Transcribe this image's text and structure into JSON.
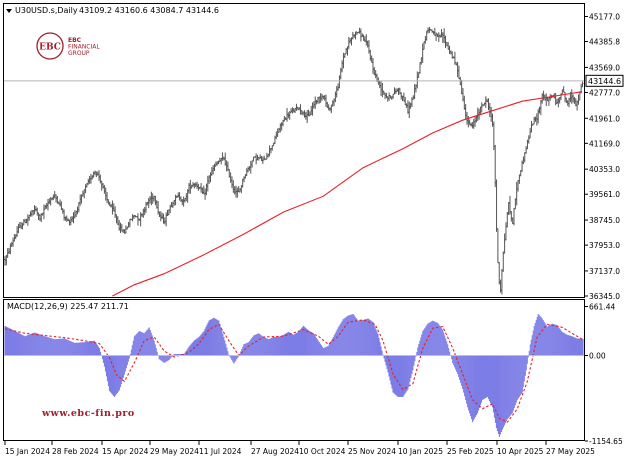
{
  "header": {
    "symbol": "U30USD.s,Daily",
    "ohlc": "43109.2 43160.6 43084.7 43144.6",
    "arrow_icon": "triangle-down-icon"
  },
  "logo": {
    "name_line1": "EBC",
    "name_line2": "FINANCIAL",
    "name_line3": "GROUP",
    "monogram": "EBC"
  },
  "watermark_url": "www.ebc-fin.pro",
  "macd": {
    "label": "MACD(12,26,9) 225.47 211.71",
    "tick_top": "661.44",
    "tick_zero": "0.00",
    "tick_bottom": "-1154.65"
  },
  "current_price_label": "43144.6",
  "chart_data": [
    {
      "type": "bar",
      "subtype": "ohlc",
      "title": "U30USD.s,Daily",
      "y_ticks": [
        "45177.0",
        "44385.8",
        "43569.0",
        "42777.0",
        "41961.0",
        "41169.0",
        "40353.0",
        "39561.0",
        "38745.0",
        "37953.0",
        "37137.0",
        "36345.0"
      ],
      "ylim": [
        36345.0,
        45177.0
      ],
      "x_ticks": [
        "15 Jan 2024",
        "28 Feb 2024",
        "15 Apr 2024",
        "29 May 2024",
        "11 Jul 2024",
        "27 Aug 2024",
        "10 Oct 2024",
        "25 Nov 2024",
        "10 Jan 2025",
        "25 Feb 2025",
        "10 Apr 2025",
        "27 May 2025"
      ],
      "last_close": 43144.6,
      "price_path": [
        [
          0,
          37500
        ],
        [
          3,
          37700
        ],
        [
          8,
          38100
        ],
        [
          14,
          38500
        ],
        [
          20,
          38700
        ],
        [
          25,
          38900
        ],
        [
          30,
          39100
        ],
        [
          35,
          38800
        ],
        [
          40,
          39100
        ],
        [
          45,
          39400
        ],
        [
          50,
          39500
        ],
        [
          55,
          39250
        ],
        [
          60,
          38800
        ],
        [
          64,
          38700
        ],
        [
          70,
          38900
        ],
        [
          75,
          39300
        ],
        [
          80,
          39700
        ],
        [
          85,
          40000
        ],
        [
          90,
          40300
        ],
        [
          95,
          40100
        ],
        [
          100,
          39600
        ],
        [
          105,
          39200
        ],
        [
          110,
          39000
        ],
        [
          115,
          38500
        ],
        [
          120,
          38350
        ],
        [
          125,
          38700
        ],
        [
          130,
          38900
        ],
        [
          135,
          38800
        ],
        [
          140,
          39100
        ],
        [
          145,
          39400
        ],
        [
          150,
          39500
        ],
        [
          155,
          38900
        ],
        [
          160,
          38700
        ],
        [
          165,
          39100
        ],
        [
          170,
          39400
        ],
        [
          175,
          39500
        ],
        [
          180,
          39300
        ],
        [
          185,
          39800
        ],
        [
          190,
          39900
        ],
        [
          195,
          39800
        ],
        [
          200,
          39500
        ],
        [
          205,
          40100
        ],
        [
          210,
          40400
        ],
        [
          215,
          40600
        ],
        [
          220,
          40700
        ],
        [
          225,
          40200
        ],
        [
          230,
          39700
        ],
        [
          235,
          39600
        ],
        [
          240,
          40100
        ],
        [
          245,
          40400
        ],
        [
          250,
          40700
        ],
        [
          255,
          40700
        ],
        [
          260,
          40600
        ],
        [
          265,
          40900
        ],
        [
          270,
          41200
        ],
        [
          275,
          41600
        ],
        [
          280,
          41900
        ],
        [
          285,
          42100
        ],
        [
          290,
          42200
        ],
        [
          295,
          42300
        ],
        [
          300,
          42100
        ],
        [
          305,
          42000
        ],
        [
          310,
          42400
        ],
        [
          315,
          42600
        ],
        [
          320,
          42700
        ],
        [
          325,
          42200
        ],
        [
          330,
          42500
        ],
        [
          335,
          43000
        ],
        [
          340,
          43900
        ],
        [
          345,
          44300
        ],
        [
          350,
          44600
        ],
        [
          355,
          44700
        ],
        [
          360,
          44500
        ],
        [
          365,
          44200
        ],
        [
          370,
          43500
        ],
        [
          375,
          43100
        ],
        [
          380,
          42800
        ],
        [
          385,
          42600
        ],
        [
          390,
          42700
        ],
        [
          395,
          42900
        ],
        [
          400,
          42600
        ],
        [
          405,
          42200
        ],
        [
          410,
          42600
        ],
        [
          415,
          43300
        ],
        [
          420,
          44200
        ],
        [
          425,
          44800
        ],
        [
          430,
          44700
        ],
        [
          435,
          44500
        ],
        [
          440,
          44600
        ],
        [
          445,
          44200
        ],
        [
          450,
          43900
        ],
        [
          455,
          43500
        ],
        [
          460,
          42600
        ],
        [
          465,
          41800
        ],
        [
          470,
          41700
        ],
        [
          475,
          42100
        ],
        [
          480,
          42400
        ],
        [
          485,
          42500
        ],
        [
          490,
          41800
        ],
        [
          492,
          40800
        ],
        [
          494,
          38500
        ],
        [
          496,
          37000
        ],
        [
          498,
          36500
        ],
        [
          500,
          37400
        ],
        [
          503,
          38400
        ],
        [
          506,
          39300
        ],
        [
          510,
          38600
        ],
        [
          514,
          39700
        ],
        [
          518,
          40300
        ],
        [
          522,
          40800
        ],
        [
          526,
          41300
        ],
        [
          530,
          41800
        ],
        [
          535,
          42000
        ],
        [
          540,
          42700
        ],
        [
          545,
          42500
        ],
        [
          550,
          42700
        ],
        [
          555,
          42400
        ],
        [
          560,
          42900
        ],
        [
          565,
          42400
        ],
        [
          570,
          42700
        ],
        [
          574,
          42400
        ],
        [
          577,
          42600
        ],
        [
          579,
          42900
        ],
        [
          581,
          43144.6
        ]
      ],
      "ma_path": [
        [
          108,
          36345
        ],
        [
          130,
          36700
        ],
        [
          160,
          37050
        ],
        [
          200,
          37650
        ],
        [
          240,
          38300
        ],
        [
          280,
          39000
        ],
        [
          320,
          39500
        ],
        [
          360,
          40400
        ],
        [
          400,
          41000
        ],
        [
          430,
          41500
        ],
        [
          460,
          41900
        ],
        [
          490,
          42200
        ],
        [
          520,
          42500
        ],
        [
          550,
          42650
        ],
        [
          580,
          42800
        ]
      ]
    },
    {
      "type": "bar",
      "subtype": "histogram-with-signal",
      "title": "MACD(12,26,9) 225.47 211.71",
      "ylim": [
        -1154.65,
        661.44
      ],
      "y_ticks": [
        "661.44",
        "0.00",
        "-1154.65"
      ],
      "macd_last": 225.47,
      "signal_last": 211.71,
      "hist_path": [
        [
          0,
          400
        ],
        [
          10,
          330
        ],
        [
          20,
          260
        ],
        [
          30,
          310
        ],
        [
          40,
          260
        ],
        [
          50,
          220
        ],
        [
          60,
          230
        ],
        [
          70,
          170
        ],
        [
          80,
          180
        ],
        [
          90,
          200
        ],
        [
          95,
          100
        ],
        [
          100,
          -150
        ],
        [
          105,
          -480
        ],
        [
          110,
          -560
        ],
        [
          115,
          -470
        ],
        [
          120,
          -260
        ],
        [
          125,
          -40
        ],
        [
          130,
          260
        ],
        [
          135,
          330
        ],
        [
          140,
          300
        ],
        [
          145,
          380
        ],
        [
          150,
          200
        ],
        [
          155,
          -50
        ],
        [
          160,
          -100
        ],
        [
          165,
          -60
        ],
        [
          170,
          20
        ],
        [
          180,
          20
        ],
        [
          185,
          120
        ],
        [
          190,
          200
        ],
        [
          195,
          250
        ],
        [
          200,
          330
        ],
        [
          205,
          470
        ],
        [
          210,
          510
        ],
        [
          215,
          470
        ],
        [
          220,
          250
        ],
        [
          225,
          10
        ],
        [
          230,
          -110
        ],
        [
          235,
          -10
        ],
        [
          240,
          150
        ],
        [
          245,
          180
        ],
        [
          250,
          270
        ],
        [
          255,
          300
        ],
        [
          260,
          250
        ],
        [
          265,
          220
        ],
        [
          270,
          250
        ],
        [
          275,
          250
        ],
        [
          280,
          280
        ],
        [
          285,
          320
        ],
        [
          290,
          280
        ],
        [
          295,
          320
        ],
        [
          300,
          400
        ],
        [
          305,
          340
        ],
        [
          310,
          300
        ],
        [
          315,
          200
        ],
        [
          320,
          100
        ],
        [
          325,
          130
        ],
        [
          330,
          250
        ],
        [
          335,
          380
        ],
        [
          340,
          490
        ],
        [
          345,
          540
        ],
        [
          350,
          560
        ],
        [
          355,
          470
        ],
        [
          360,
          480
        ],
        [
          365,
          500
        ],
        [
          370,
          450
        ],
        [
          375,
          290
        ],
        [
          380,
          10
        ],
        [
          385,
          -230
        ],
        [
          390,
          -500
        ],
        [
          395,
          -560
        ],
        [
          400,
          -560
        ],
        [
          405,
          -460
        ],
        [
          410,
          -200
        ],
        [
          415,
          110
        ],
        [
          420,
          330
        ],
        [
          425,
          430
        ],
        [
          430,
          470
        ],
        [
          435,
          440
        ],
        [
          440,
          350
        ],
        [
          445,
          150
        ],
        [
          450,
          -100
        ],
        [
          455,
          -250
        ],
        [
          460,
          -450
        ],
        [
          465,
          -700
        ],
        [
          470,
          -900
        ],
        [
          475,
          -780
        ],
        [
          480,
          -600
        ],
        [
          485,
          -560
        ],
        [
          490,
          -700
        ],
        [
          494,
          -980
        ],
        [
          497,
          -1100
        ],
        [
          500,
          -1000
        ],
        [
          505,
          -860
        ],
        [
          510,
          -780
        ],
        [
          515,
          -600
        ],
        [
          520,
          -500
        ],
        [
          524,
          -200
        ],
        [
          528,
          150
        ],
        [
          532,
          400
        ],
        [
          536,
          560
        ],
        [
          540,
          500
        ],
        [
          545,
          390
        ],
        [
          550,
          430
        ],
        [
          555,
          410
        ],
        [
          560,
          320
        ],
        [
          565,
          280
        ],
        [
          570,
          260
        ],
        [
          575,
          230
        ],
        [
          581,
          225
        ]
      ],
      "signal_path": [
        [
          0,
          360
        ],
        [
          20,
          300
        ],
        [
          40,
          270
        ],
        [
          60,
          240
        ],
        [
          80,
          200
        ],
        [
          95,
          160
        ],
        [
          105,
          -30
        ],
        [
          112,
          -260
        ],
        [
          120,
          -350
        ],
        [
          130,
          -100
        ],
        [
          140,
          200
        ],
        [
          150,
          250
        ],
        [
          160,
          60
        ],
        [
          170,
          -20
        ],
        [
          185,
          40
        ],
        [
          195,
          160
        ],
        [
          205,
          350
        ],
        [
          215,
          420
        ],
        [
          225,
          200
        ],
        [
          235,
          0
        ],
        [
          245,
          130
        ],
        [
          260,
          250
        ],
        [
          280,
          260
        ],
        [
          300,
          350
        ],
        [
          315,
          260
        ],
        [
          325,
          150
        ],
        [
          335,
          260
        ],
        [
          345,
          450
        ],
        [
          360,
          480
        ],
        [
          372,
          420
        ],
        [
          380,
          200
        ],
        [
          390,
          -250
        ],
        [
          400,
          -460
        ],
        [
          410,
          -380
        ],
        [
          420,
          100
        ],
        [
          430,
          370
        ],
        [
          440,
          390
        ],
        [
          450,
          100
        ],
        [
          460,
          -250
        ],
        [
          470,
          -600
        ],
        [
          480,
          -720
        ],
        [
          490,
          -650
        ],
        [
          497,
          -850
        ],
        [
          505,
          -900
        ],
        [
          515,
          -720
        ],
        [
          525,
          -350
        ],
        [
          535,
          250
        ],
        [
          545,
          420
        ],
        [
          560,
          380
        ],
        [
          581,
          211.71
        ]
      ]
    }
  ]
}
